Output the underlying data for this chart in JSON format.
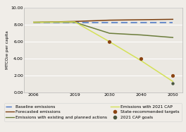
{
  "years": [
    2006,
    2019,
    2030,
    2040,
    2050
  ],
  "baseline_emissions": [
    8.3,
    8.3,
    8.3,
    8.3,
    8.3
  ],
  "forecasted_emissions": [
    8.3,
    8.4,
    8.55,
    8.6,
    8.65
  ],
  "existing_planned": [
    8.3,
    8.3,
    7.0,
    6.8,
    6.5
  ],
  "cap_2021": [
    8.3,
    8.35,
    6.0,
    3.75,
    1.3
  ],
  "state_targets_years": [
    2030,
    2040,
    2050
  ],
  "state_targets_values": [
    6.0,
    4.0,
    2.0
  ],
  "cap_goals_years": [
    2050
  ],
  "cap_goals_values": [
    1.1
  ],
  "xlim": [
    2003,
    2053
  ],
  "ylim": [
    0.0,
    10.0
  ],
  "ytick_labels": [
    "0.00",
    "2.00",
    "4.00",
    "6.00",
    "8.00",
    "10.00"
  ],
  "ytick_values": [
    0.0,
    2.0,
    4.0,
    6.0,
    8.0,
    10.0
  ],
  "xticks": [
    2006,
    2019,
    2030,
    2040,
    2050
  ],
  "ylabel": "MTCO₂e per capita",
  "color_baseline": "#4472c4",
  "color_forecasted": "#7b3f10",
  "color_existing": "#6b7c3a",
  "color_cap": "#d4e157",
  "color_state_targets": "#8b4513",
  "color_cap_goals": "#4a5740",
  "bg_color": "#f0ede8",
  "plot_bg": "#ebe8e2",
  "legend_fontsize": 4.2,
  "tick_fontsize": 4.5
}
